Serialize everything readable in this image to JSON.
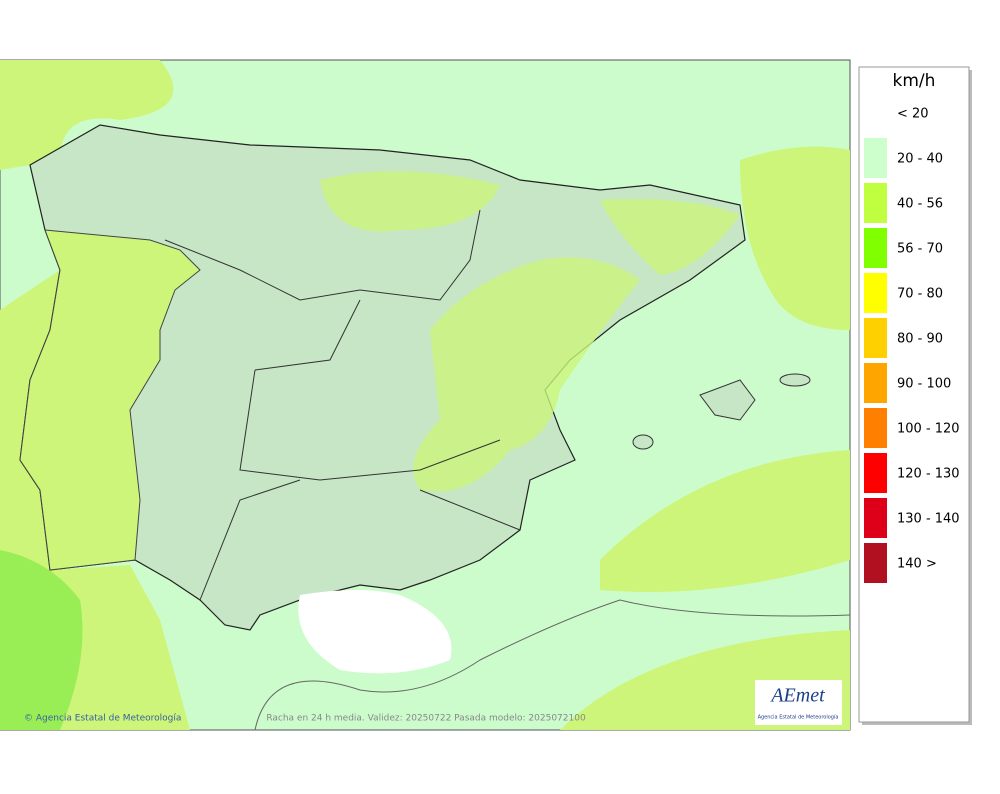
{
  "map": {
    "caption": "Racha en 24 h media. Validez: 20250722 Pasada modelo: 2025072100",
    "credit": "© Agencia Estatal de Meteorología"
  },
  "logo": {
    "name": "AEmet",
    "subtitle": "Agencia Estatal de Meteorología"
  },
  "legend": {
    "title": "km/h",
    "entries": [
      {
        "label": "< 20",
        "color": "#ffffff"
      },
      {
        "label": "20 - 40",
        "color": "#ccffcc"
      },
      {
        "label": "40 - 56",
        "color": "#c0ff40"
      },
      {
        "label": "56 - 70",
        "color": "#80ff00"
      },
      {
        "label": "70 - 80",
        "color": "#ffff00"
      },
      {
        "label": "80 - 90",
        "color": "#ffd000"
      },
      {
        "label": "90 - 100",
        "color": "#ffa500"
      },
      {
        "label": "100 - 120",
        "color": "#ff8000"
      },
      {
        "label": "120 - 130",
        "color": "#ff0000"
      },
      {
        "label": "130 - 140",
        "color": "#dd0018"
      },
      {
        "label": "140 >",
        "color": "#b01020"
      }
    ]
  }
}
